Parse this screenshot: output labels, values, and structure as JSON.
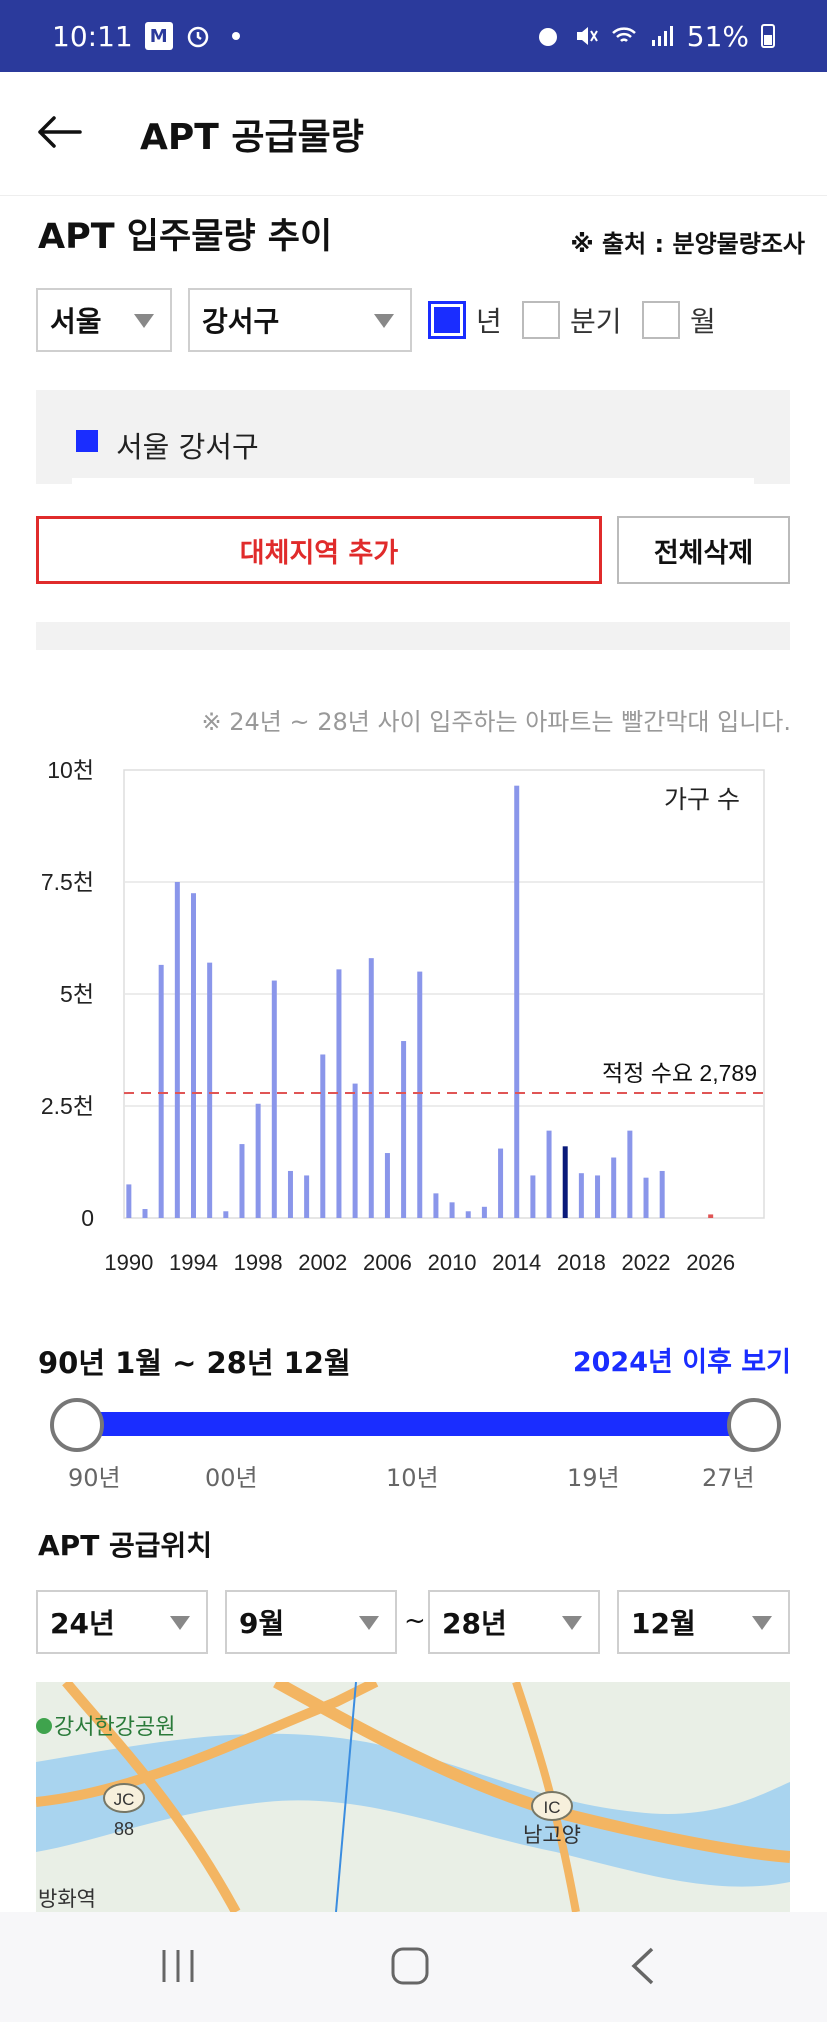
{
  "status": {
    "time": "10:11",
    "m_badge": "M",
    "battery": "51%"
  },
  "header": {
    "title": "APT 공급물량"
  },
  "section": {
    "title": "APT 입주물량 추이",
    "source": "※ 출처 : 분양물량조사"
  },
  "filters": {
    "city": "서울",
    "district": "강서구"
  },
  "period": {
    "year": "년",
    "quarter": "분기",
    "month": "월",
    "selected": "년"
  },
  "legend": {
    "region": "서울 강서구",
    "color": "#1a2dff"
  },
  "buttons": {
    "add_region": "대체지역 추가",
    "clear_all": "전체삭제"
  },
  "note": "※ 24년 ~ 28년 사이 입주하는 아파트는 빨간막대 입니다.",
  "chart_data": {
    "type": "bar",
    "x": [
      1990,
      1991,
      1992,
      1993,
      1994,
      1995,
      1996,
      1997,
      1998,
      1999,
      2000,
      2001,
      2002,
      2003,
      2004,
      2005,
      2006,
      2007,
      2008,
      2009,
      2010,
      2011,
      2012,
      2013,
      2014,
      2015,
      2016,
      2017,
      2018,
      2019,
      2020,
      2021,
      2022,
      2023,
      2024,
      2025,
      2026,
      2027,
      2028
    ],
    "values": [
      750,
      200,
      5650,
      7500,
      7250,
      5700,
      150,
      1650,
      2550,
      5300,
      1050,
      950,
      3650,
      5550,
      3000,
      5800,
      1450,
      3950,
      5500,
      550,
      350,
      150,
      250,
      1550,
      9650,
      950,
      1950,
      1600,
      1000,
      950,
      1350,
      1950,
      900,
      1050,
      0,
      0,
      80,
      0,
      0
    ],
    "highlight_year": 2017,
    "ylim": [
      0,
      10000
    ],
    "y_ticks": [
      "0",
      "2.5천",
      "5천",
      "7.5천",
      "10천"
    ],
    "x_ticks": [
      "1990",
      "1994",
      "1998",
      "2002",
      "2006",
      "2010",
      "2014",
      "2018",
      "2022",
      "2026"
    ],
    "unit_label": "가구 수",
    "reference": {
      "label": "적정 수요 2,789",
      "value": 2789,
      "color": "#e05555"
    },
    "colors": {
      "bar": "#8a96ea",
      "highlight": "#0a1a7a",
      "future": "#e05555"
    },
    "grid": true
  },
  "range": {
    "label": "90년 1월 ~ 28년 12월",
    "link": "2024년 이후 보기",
    "ticks": [
      "90년",
      "00년",
      "10년",
      "19년",
      "27년"
    ],
    "start_fraction": 0.0,
    "end_fraction": 1.0
  },
  "location": {
    "title": "APT 공급위치",
    "from_year": "24년",
    "from_month": "9월",
    "tilde": "~",
    "to_year": "28년",
    "to_month": "12월"
  },
  "map": {
    "park": "강서한강공원",
    "jc": "JC",
    "road_num": "88",
    "ic": "IC",
    "ic_name": "남고양",
    "station": "방화역"
  }
}
